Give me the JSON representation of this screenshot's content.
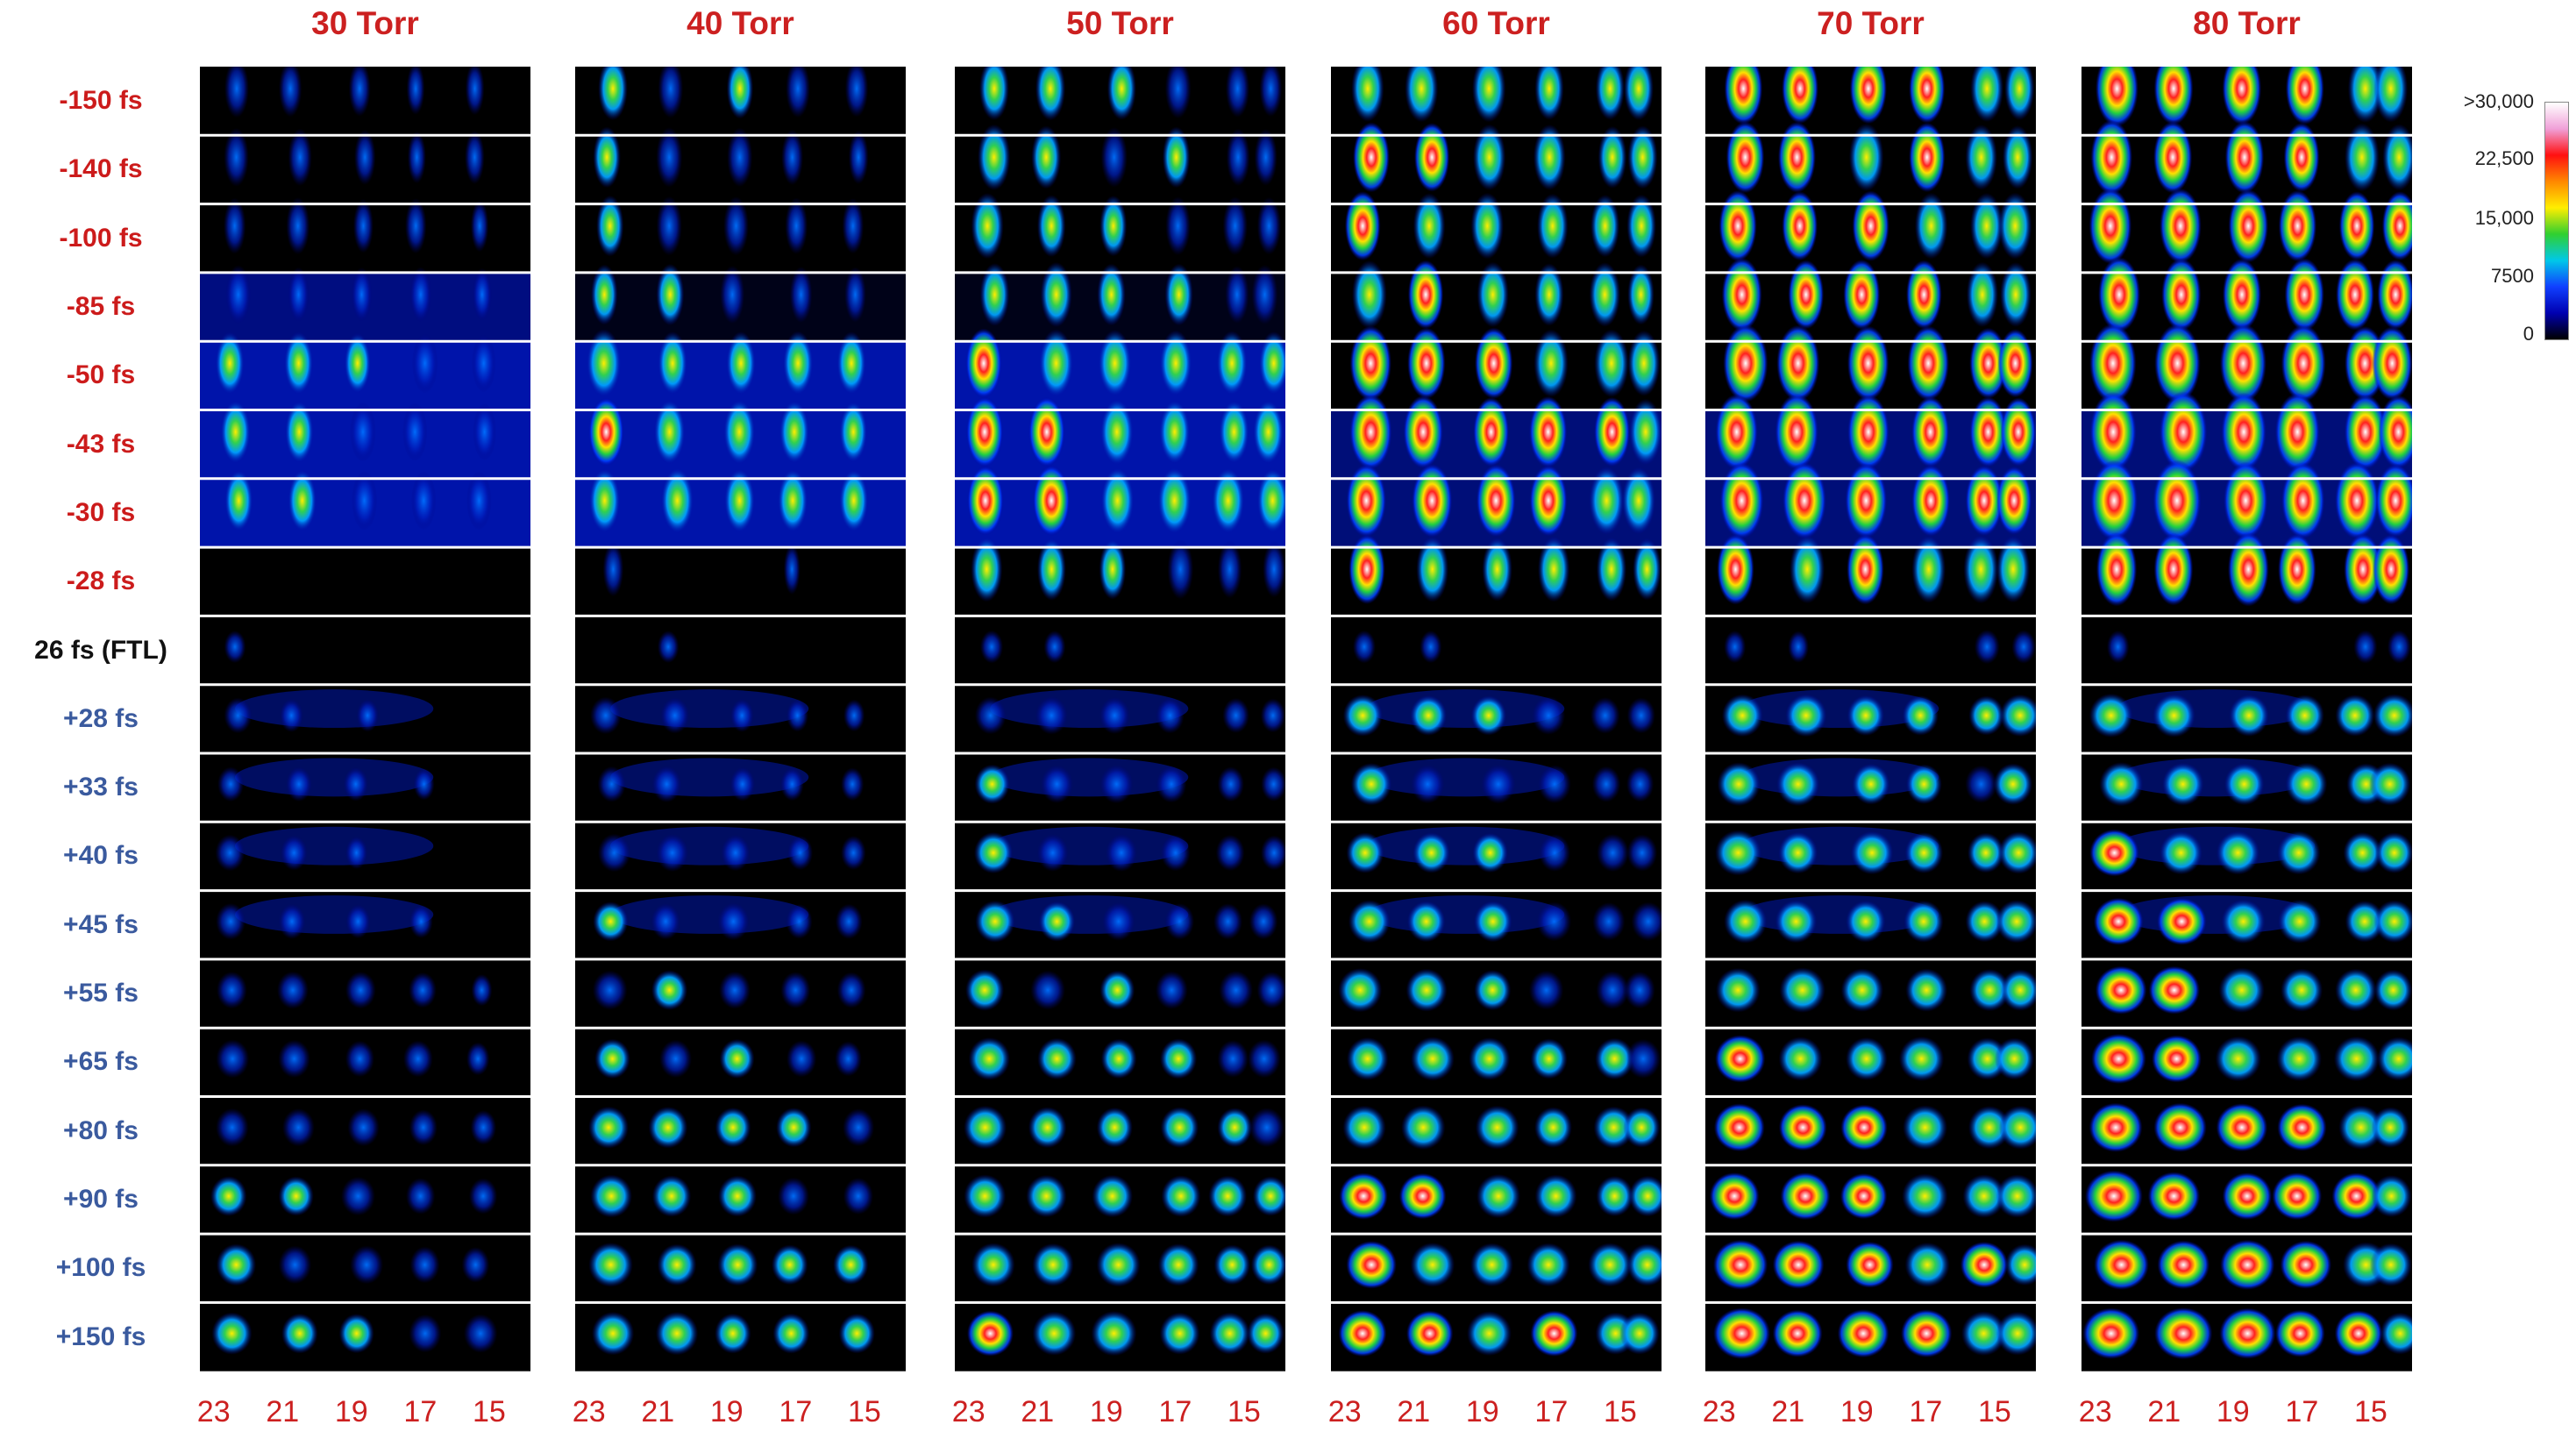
{
  "chart_data": {
    "type": "heatmap",
    "columns": [
      "30 Torr",
      "40 Torr",
      "50 Torr",
      "60 Torr",
      "70 Torr",
      "80 Torr"
    ],
    "rows": [
      {
        "label": "-150 fs",
        "group": "neg"
      },
      {
        "label": "-140 fs",
        "group": "neg"
      },
      {
        "label": "-100 fs",
        "group": "neg"
      },
      {
        "label": "-85 fs",
        "group": "neg"
      },
      {
        "label": "-50 fs",
        "group": "neg"
      },
      {
        "label": "-43 fs",
        "group": "neg"
      },
      {
        "label": "-30 fs",
        "group": "neg"
      },
      {
        "label": "-28 fs",
        "group": "neg"
      },
      {
        "label": "26 fs (FTL)",
        "group": "ftl"
      },
      {
        "label": "+28 fs",
        "group": "pos"
      },
      {
        "label": "+33 fs",
        "group": "pos"
      },
      {
        "label": "+40 fs",
        "group": "pos"
      },
      {
        "label": "+45 fs",
        "group": "pos"
      },
      {
        "label": "+55 fs",
        "group": "pos"
      },
      {
        "label": "+65 fs",
        "group": "pos"
      },
      {
        "label": "+80 fs",
        "group": "pos"
      },
      {
        "label": "+90 fs",
        "group": "pos"
      },
      {
        "label": "+100 fs",
        "group": "pos"
      },
      {
        "label": "+150 fs",
        "group": "pos"
      }
    ],
    "x_ticks": [
      "23",
      "21",
      "19",
      "17",
      "15"
    ],
    "x_tick_values": [
      23,
      21,
      19,
      17,
      15
    ],
    "xlim": [
      23.4,
      13.8
    ],
    "colorbar": {
      "labels": [
        ">30,000",
        "22,500",
        "15,000",
        "7500",
        "0"
      ],
      "colors": [
        "#ffffff",
        "#f0a0d8",
        "#ff1010",
        "#ff8800",
        "#ffee00",
        "#30d030",
        "#00c8e8",
        "#1040ff",
        "#0000b0",
        "#000000"
      ]
    },
    "colors": {
      "title": "#cc2020",
      "negative_delay_label": "#cc1b1b",
      "ftl_label": "#111111",
      "positive_delay_label": "#3a5a9e",
      "tick_label": "#cc2020",
      "row_separator": "#ffffff"
    }
  }
}
